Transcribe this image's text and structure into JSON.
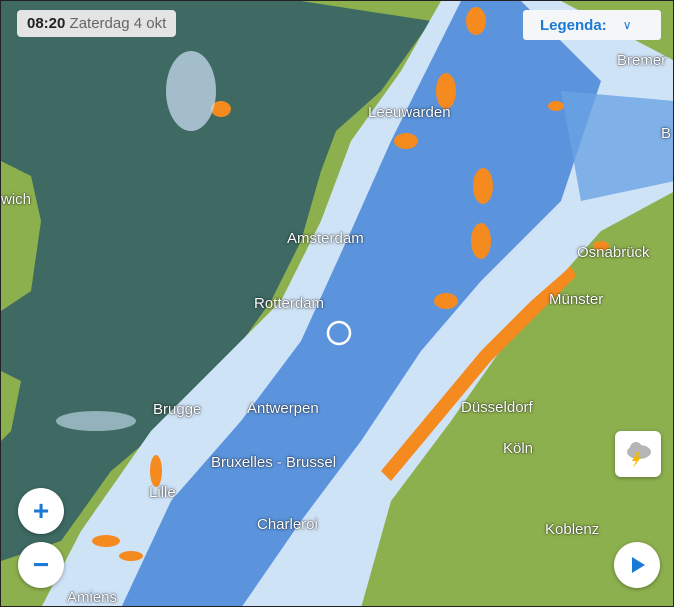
{
  "header": {
    "time": "08:20",
    "date": "Zaterdag 4 okt"
  },
  "legend": {
    "label": "Legenda:"
  },
  "cities": [
    "Leeuwarden",
    "Bremer",
    "Amsterdam",
    "Osnabrück",
    "Rotterdam",
    "Münster",
    "Brugge",
    "Antwerpen",
    "Düsseldorf",
    "Köln",
    "Bruxelles - Brussel",
    "Lille",
    "Charleroi",
    "Koblenz",
    "Amiens",
    "wich",
    "B"
  ],
  "controls": {
    "zoom_in": "+",
    "zoom_out": "−"
  },
  "icons": {
    "play": "play-icon",
    "storm": "thunderstorm-icon",
    "location": "location-marker-icon"
  },
  "colors": {
    "sea": "#3e6a63",
    "land": "#8db04e",
    "rain_light": "#cfe3f7",
    "rain_medium": "#3d7fd6",
    "rain_heavy": "#f58a1f",
    "accent": "#1a7ad4"
  }
}
